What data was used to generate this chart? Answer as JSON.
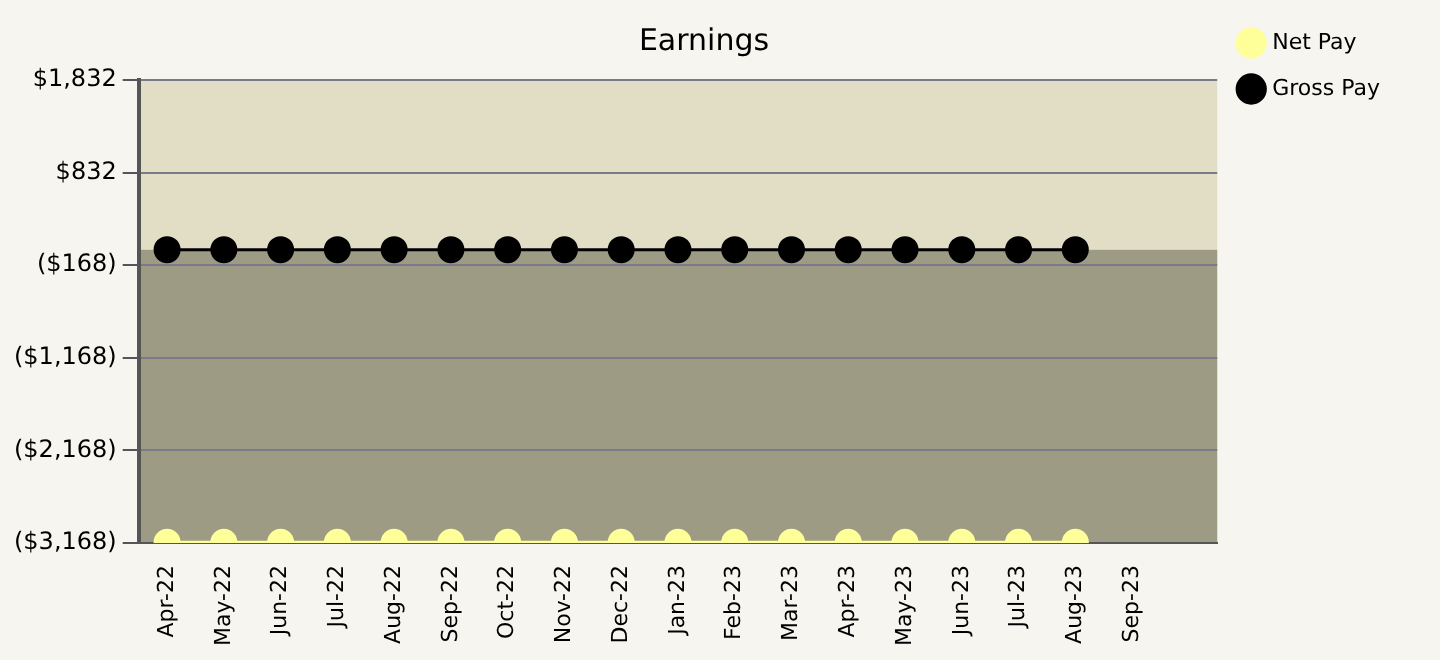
{
  "chart_data": {
    "type": "line",
    "title": "Earnings",
    "categories": [
      "Apr-22",
      "May-22",
      "Jun-22",
      "Jul-22",
      "Aug-22",
      "Sep-22",
      "Oct-22",
      "Nov-22",
      "Dec-22",
      "Jan-23",
      "Feb-23",
      "Mar-23",
      "Apr-23",
      "May-23",
      "Jun-23",
      "Jul-23",
      "Aug-23",
      "Sep-23",
      null
    ],
    "series": [
      {
        "name": "Net Pay",
        "color": "#ffff99",
        "values": [
          -3160,
          -3160,
          -3160,
          -3160,
          -3160,
          -3160,
          -3160,
          -3160,
          -3160,
          -3160,
          -3160,
          -3160,
          -3160,
          -3160,
          -3160,
          -3160,
          -3160,
          null,
          null
        ]
      },
      {
        "name": "Gross Pay",
        "color": "#000000",
        "values": [
          0,
          0,
          0,
          0,
          0,
          0,
          0,
          0,
          0,
          0,
          0,
          0,
          0,
          0,
          0,
          0,
          0,
          null,
          null
        ]
      }
    ],
    "ylim": [
      -3168,
      1832
    ],
    "yticks": [
      {
        "value": -3168,
        "label": "($3,168)"
      },
      {
        "value": -2168,
        "label": "($2,168)"
      },
      {
        "value": -1168,
        "label": "($1,168)"
      },
      {
        "value": -168,
        "label": "($168)"
      },
      {
        "value": 832,
        "label": "$832"
      },
      {
        "value": 1832,
        "label": "$1,832"
      }
    ],
    "bands": [
      {
        "axis": "y",
        "from": 0,
        "to": 1832,
        "color": "#e2dec6"
      },
      {
        "axis": "y",
        "from": -3168,
        "to": 0,
        "color": "#9d9b84"
      }
    ],
    "grid": "y",
    "legend": "right",
    "marker": "circle",
    "line_style": "solid"
  }
}
